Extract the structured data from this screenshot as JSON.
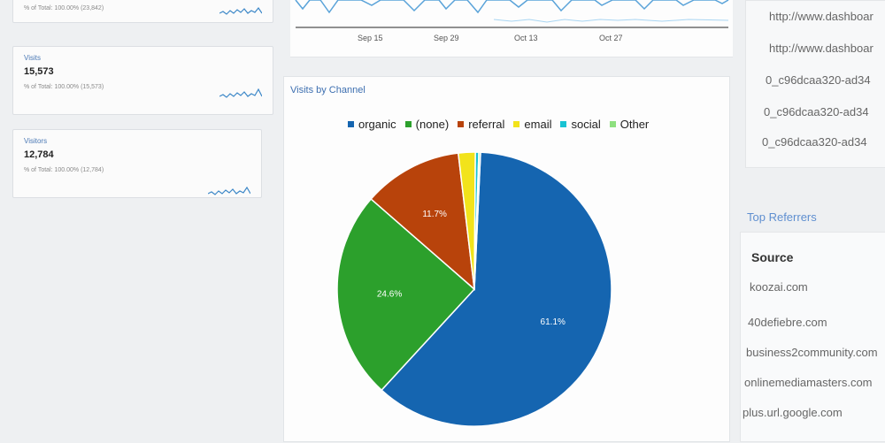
{
  "stat_cards": [
    {
      "label": "",
      "value": "",
      "sub": "% of Total: 100.00% (23,842)"
    },
    {
      "label": "Visits",
      "value": "15,573",
      "sub": "% of Total: 100.00% (15,573)"
    },
    {
      "label": "Visitors",
      "value": "12,784",
      "sub": "% of Total: 100.00% (12,784)"
    }
  ],
  "top_chart": {
    "ticks": [
      "Sep 15",
      "Sep 29",
      "Oct 13",
      "Oct 27"
    ],
    "colors": {
      "line": "#5aa3d9",
      "fill": "#cfe6f6"
    }
  },
  "panel": {
    "title": "Visits by Channel"
  },
  "chart_data": {
    "type": "pie",
    "title": "",
    "legend_position": "top",
    "slices": [
      {
        "name": "organic",
        "value": 61.1,
        "label": "61.1%",
        "color": "#1565b0"
      },
      {
        "name": "(none)",
        "value": 24.6,
        "label": "24.6%",
        "color": "#2ca02c"
      },
      {
        "name": "referral",
        "value": 11.7,
        "label": "11.7%",
        "color": "#b8430b"
      },
      {
        "name": "email",
        "value": 2.0,
        "label": "",
        "color": "#f2e31b"
      },
      {
        "name": "social",
        "value": 0.4,
        "label": "",
        "color": "#19c3d3"
      },
      {
        "name": "Other",
        "value": 0.2,
        "label": "",
        "color": "#8ee07f"
      }
    ]
  },
  "urls": [
    "http://www.dashboar",
    "http://www.dashboar",
    "0_c96dcaa320-ad34",
    "0_c96dcaa320-ad34",
    "0_c96dcaa320-ad34"
  ],
  "referrers": {
    "title": "Top Referrers",
    "header": "Source",
    "items": [
      "koozai.com",
      "40defiebre.com",
      "business2community.com",
      "onlinemediamasters.com",
      "plus.url.google.com"
    ]
  }
}
